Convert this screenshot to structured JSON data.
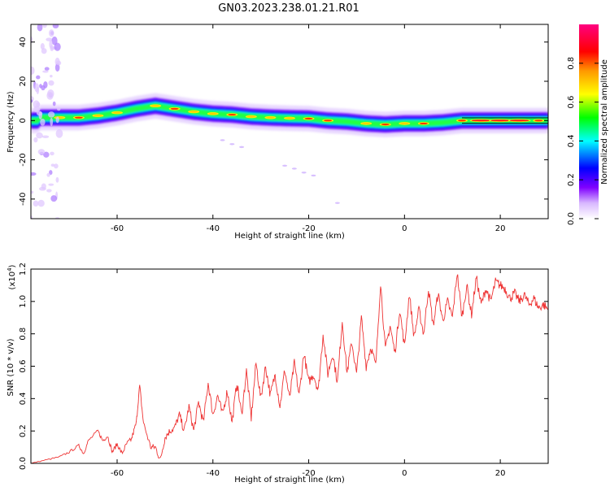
{
  "title": "GN03.2023.238.01.21.R01",
  "chart_data": [
    {
      "type": "heatmap",
      "xlabel": "Height of straight line (km)",
      "ylabel": "Frequency (Hz)",
      "xlim": [
        -78,
        30
      ],
      "ylim": [
        -50,
        49
      ],
      "x_ticks": [
        -60,
        -40,
        -20,
        0,
        20
      ],
      "y_ticks": [
        -40,
        -20,
        0,
        20,
        40
      ],
      "x_tick_labels": [
        "-60",
        "-40",
        "-20",
        "0",
        "20"
      ],
      "y_tick_labels": [
        "-40",
        "-20",
        "0",
        "20",
        "40"
      ],
      "colorbar": {
        "label": "Normalized spectral amplitude",
        "range": [
          0,
          1
        ],
        "ticks": [
          0,
          0.2,
          0.4,
          0.6,
          0.8
        ],
        "tick_labels": [
          "0.0",
          "0.2",
          "0.4",
          "0.6",
          "0.8"
        ],
        "colors": [
          "#ffffff",
          "#8000ff",
          "#0000ff",
          "#00ffff",
          "#00ff00",
          "#ffff00",
          "#ff8000",
          "#ff0000",
          "#ff0080"
        ]
      },
      "ridge": {
        "x": [
          -76,
          -72,
          -68,
          -64,
          -60,
          -56,
          -52,
          -48,
          -44,
          -40,
          -36,
          -32,
          -28,
          -24,
          -20,
          -16,
          -12,
          -8,
          -4,
          0,
          4,
          8,
          12,
          16,
          20,
          24,
          28,
          30
        ],
        "y": [
          1.5,
          1.5,
          1.5,
          2.5,
          4,
          6,
          7.5,
          6,
          4.5,
          3.5,
          3,
          2,
          1.5,
          1.2,
          1,
          0,
          -0.5,
          -1.5,
          -2,
          -1.5,
          -1.5,
          -1,
          0,
          0,
          0,
          0,
          0,
          0
        ],
        "amplitude": [
          0.6,
          0.7,
          0.85,
          0.75,
          0.7,
          0.65,
          0.7,
          0.8,
          0.75,
          0.7,
          0.8,
          0.75,
          0.7,
          0.75,
          0.8,
          0.85,
          0.6,
          0.75,
          0.8,
          0.75,
          0.85,
          0.6,
          0.8,
          0.95,
          0.95,
          0.95,
          0.85,
          0.6
        ]
      }
    },
    {
      "type": "line",
      "xlabel": "Height of straight line (km)",
      "ylabel": "SNR (10 * v/v)",
      "y_multiplier": "(x10",
      "y_multiplier_exp": "4",
      "y_multiplier_close": ")",
      "xlim": [
        -78,
        30
      ],
      "ylim": [
        0,
        1.2
      ],
      "x_ticks": [
        -60,
        -40,
        -20,
        0,
        20
      ],
      "y_ticks": [
        0,
        0.2,
        0.4,
        0.6,
        0.8,
        1.0,
        1.2
      ],
      "x_tick_labels": [
        "-60",
        "-40",
        "-20",
        "0",
        "20"
      ],
      "y_tick_labels": [
        "0.0",
        "0.2",
        "0.4",
        "0.6",
        "0.8",
        "1.0",
        "1.2"
      ],
      "color": "#ee3333",
      "series": [
        {
          "x": [
            -78,
            -75,
            -72,
            -70,
            -68,
            -67,
            -66,
            -64,
            -63,
            -62,
            -61,
            -60,
            -59,
            -58,
            -57,
            -56,
            -55.3,
            -54.5,
            -53,
            -52,
            -51,
            -50,
            -49,
            -48,
            -47,
            -46,
            -45,
            -44,
            -43,
            -42,
            -41,
            -40,
            -39,
            -38,
            -37,
            -36,
            -35,
            -34,
            -33,
            -32,
            -31,
            -30,
            -29,
            -28,
            -27,
            -26,
            -25,
            -24,
            -23,
            -22,
            -21,
            -20,
            -19,
            -18,
            -17,
            -16,
            -15,
            -14,
            -13,
            -12,
            -11,
            -10,
            -9,
            -8,
            -7,
            -6,
            -5,
            -4,
            -3,
            -2,
            -1,
            0,
            1,
            2,
            3,
            4,
            5,
            6,
            7,
            8,
            9,
            10,
            11,
            12,
            13,
            14,
            15,
            16,
            17,
            18,
            19,
            20,
            21,
            22,
            23,
            24,
            25,
            26,
            27,
            28,
            29,
            30
          ],
          "y": [
            0.0,
            0.02,
            0.04,
            0.07,
            0.11,
            0.06,
            0.14,
            0.2,
            0.14,
            0.17,
            0.07,
            0.12,
            0.06,
            0.12,
            0.15,
            0.25,
            0.48,
            0.25,
            0.1,
            0.1,
            0.02,
            0.16,
            0.2,
            0.22,
            0.3,
            0.2,
            0.35,
            0.2,
            0.38,
            0.25,
            0.5,
            0.3,
            0.42,
            0.3,
            0.45,
            0.25,
            0.5,
            0.3,
            0.57,
            0.28,
            0.62,
            0.4,
            0.6,
            0.42,
            0.55,
            0.35,
            0.58,
            0.4,
            0.62,
            0.42,
            0.68,
            0.5,
            0.55,
            0.45,
            0.8,
            0.55,
            0.68,
            0.5,
            0.88,
            0.56,
            0.75,
            0.55,
            0.9,
            0.6,
            0.72,
            0.6,
            1.12,
            0.7,
            0.85,
            0.68,
            0.95,
            0.72,
            1.05,
            0.78,
            0.95,
            0.8,
            1.08,
            0.85,
            1.05,
            0.88,
            1.0,
            0.9,
            1.18,
            0.9,
            1.1,
            0.92,
            1.15,
            0.98,
            1.08,
            1.0,
            1.12,
            1.1,
            1.08,
            1.02,
            1.05,
            1.0,
            1.04,
            0.98,
            1.02,
            0.96,
            0.98,
            0.95
          ]
        }
      ]
    }
  ]
}
